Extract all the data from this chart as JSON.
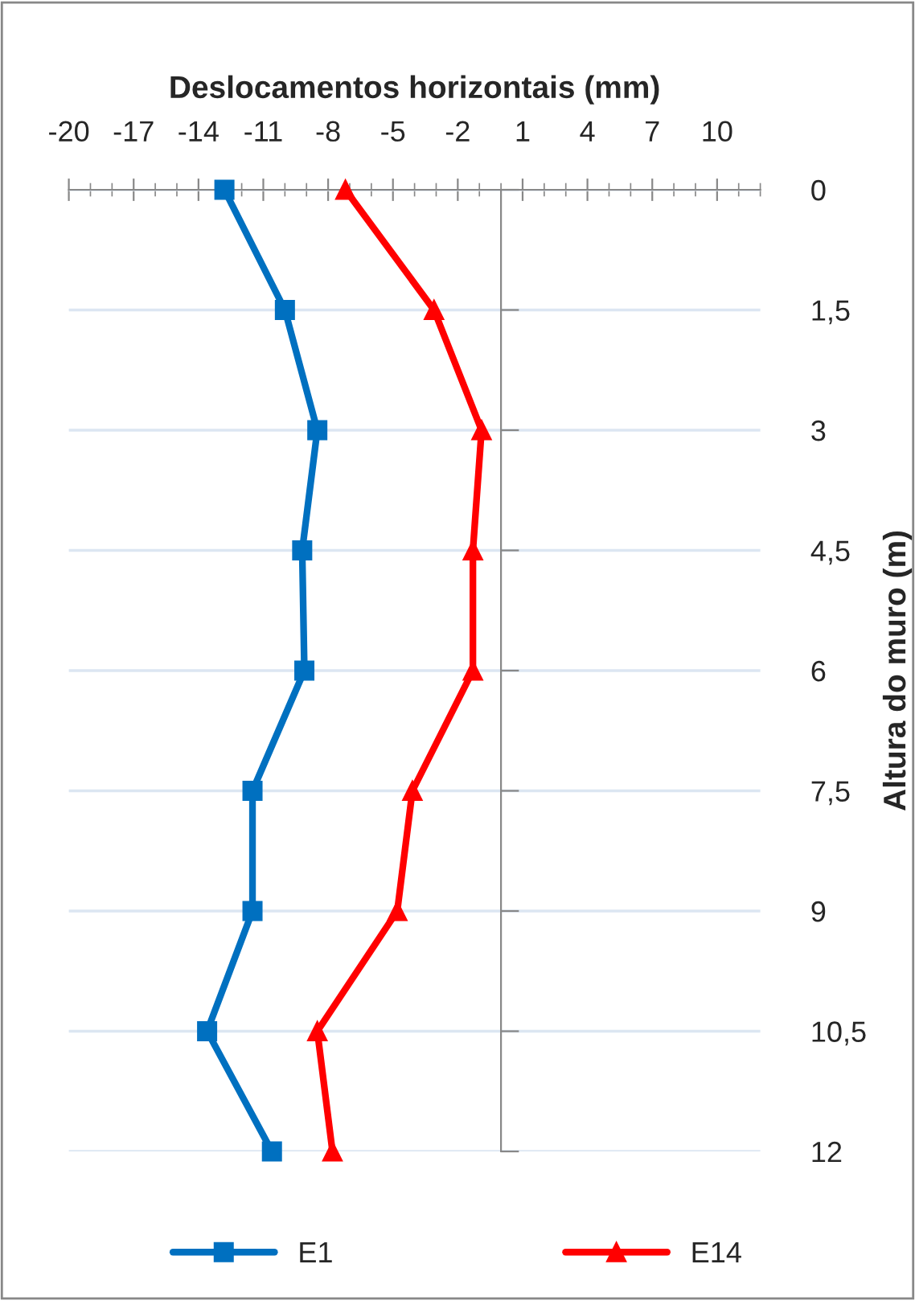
{
  "chart_data": {
    "type": "line",
    "orientation": "horizontal",
    "xlabel": "Deslocamentos horizontais (mm)",
    "ylabel": "Altura do muro (m)",
    "x": [
      0,
      1.5,
      3,
      4.5,
      6,
      7.5,
      9,
      10.5,
      12
    ],
    "series": [
      {
        "name": "E1",
        "color": "#0070c0",
        "marker": "square",
        "values": [
          -12.8,
          -10,
          -8.5,
          -9.2,
          -9.1,
          -11.5,
          -11.5,
          -13.6,
          -10.6
        ]
      },
      {
        "name": "E14",
        "color": "#ff0000",
        "marker": "triangle",
        "values": [
          -7.2,
          -3.1,
          -0.9,
          -1.3,
          -1.3,
          -4.1,
          -4.8,
          -8.5,
          -7.8
        ]
      }
    ],
    "xlim": [
      -20,
      12
    ],
    "xticks": [
      -20,
      -17,
      -14,
      -11,
      -8,
      -5,
      -2,
      1,
      4,
      7,
      10
    ],
    "ylim": [
      12,
      0
    ],
    "yticks": [
      {
        "value": 0,
        "label": "0"
      },
      {
        "value": 1.5,
        "label": "1,5"
      },
      {
        "value": 3,
        "label": "3"
      },
      {
        "value": 4.5,
        "label": "4,5"
      },
      {
        "value": 6,
        "label": "6"
      },
      {
        "value": 7.5,
        "label": "7,5"
      },
      {
        "value": 9,
        "label": "9"
      },
      {
        "value": 10.5,
        "label": "10,5"
      },
      {
        "value": 12,
        "label": "12"
      }
    ],
    "grid": "y",
    "legend": "bottom",
    "line_style": "solid"
  }
}
